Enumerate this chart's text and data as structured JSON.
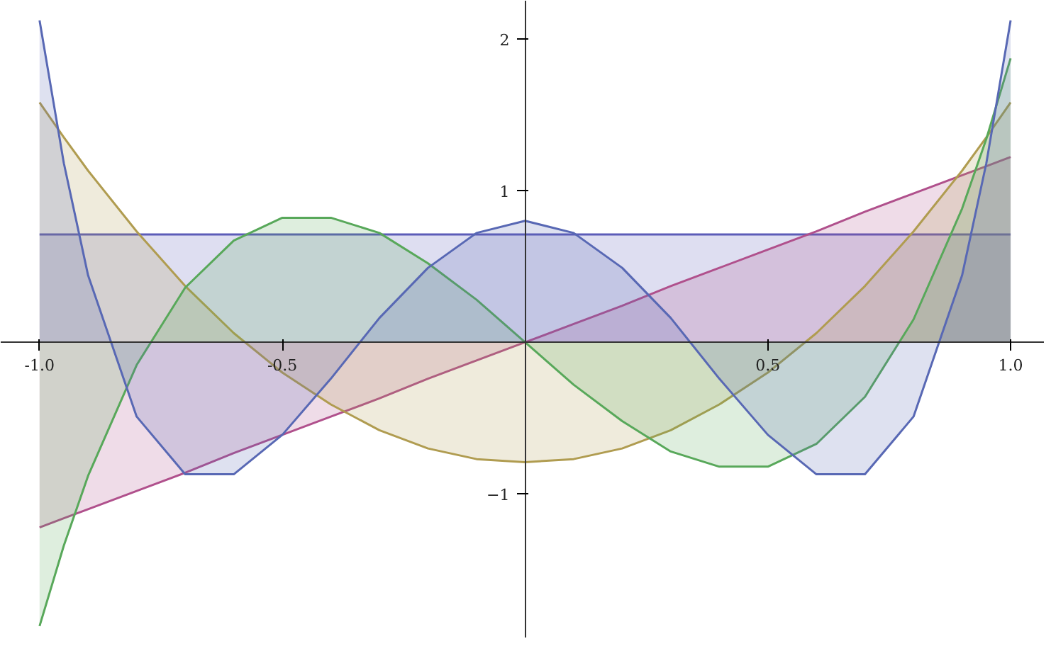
{
  "chart_data": {
    "type": "area",
    "x": [
      -1,
      -0.95,
      -0.9,
      -0.8,
      -0.7,
      -0.6,
      -0.5,
      -0.4,
      -0.3,
      -0.2,
      -0.1,
      0,
      0.1,
      0.2,
      0.3,
      0.4,
      0.5,
      0.6,
      0.7,
      0.8,
      0.9,
      0.95,
      1
    ],
    "series": [
      {
        "color": "#5c5cb8",
        "values": [
          0.71,
          0.71,
          0.71,
          0.71,
          0.71,
          0.71,
          0.71,
          0.71,
          0.71,
          0.71,
          0.71,
          0.71,
          0.71,
          0.71,
          0.71,
          0.71,
          0.71,
          0.71,
          0.71,
          0.71,
          0.71,
          0.71,
          0.71
        ]
      },
      {
        "color": "#b0508c",
        "values": [
          -1.22,
          -1.16,
          -1.1,
          -0.98,
          -0.86,
          -0.73,
          -0.61,
          -0.49,
          -0.37,
          -0.24,
          -0.12,
          0,
          0.12,
          0.24,
          0.37,
          0.49,
          0.61,
          0.73,
          0.86,
          0.98,
          1.1,
          1.16,
          1.22
        ]
      },
      {
        "color": "#b09c50",
        "values": [
          1.58,
          1.35,
          1.13,
          0.73,
          0.37,
          0.06,
          -0.2,
          -0.41,
          -0.58,
          -0.7,
          -0.77,
          -0.79,
          -0.77,
          -0.7,
          -0.58,
          -0.41,
          -0.2,
          0.06,
          0.37,
          0.73,
          1.13,
          1.35,
          1.58
        ]
      },
      {
        "color": "#58a85a",
        "values": [
          -1.87,
          -1.34,
          -0.88,
          -0.15,
          0.36,
          0.67,
          0.82,
          0.82,
          0.72,
          0.52,
          0.28,
          0,
          -0.28,
          -0.52,
          -0.72,
          -0.82,
          -0.82,
          -0.67,
          -0.36,
          0.15,
          0.88,
          1.34,
          1.87
        ]
      },
      {
        "color": "#5868b4",
        "values": [
          2.12,
          1.18,
          0.44,
          -0.49,
          -0.87,
          -0.87,
          -0.61,
          -0.24,
          0.16,
          0.49,
          0.72,
          0.8,
          0.72,
          0.49,
          0.16,
          -0.24,
          -0.61,
          -0.87,
          -0.87,
          -0.49,
          0.44,
          1.18,
          2.12
        ]
      }
    ],
    "xlim": [
      -1.08,
      1.07
    ],
    "ylim": [
      -1.95,
      2.25
    ],
    "xticks": [
      {
        "value": -1,
        "label": "-1.0"
      },
      {
        "value": -0.5,
        "label": "-0.5"
      },
      {
        "value": 0.5,
        "label": "0.5"
      },
      {
        "value": 1,
        "label": "1.0"
      }
    ],
    "yticks": [
      -1,
      1,
      2
    ],
    "grid": false
  }
}
